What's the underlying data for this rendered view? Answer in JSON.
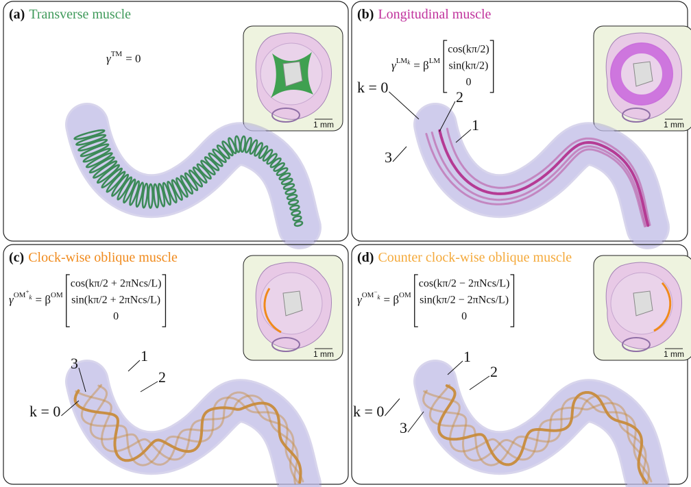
{
  "panels": [
    {
      "label": "(a)",
      "title": "Transverse muscle",
      "equation": {
        "symbol": "γ",
        "superscript": "TM",
        "rhs": "= 0"
      },
      "scale_bar": "1 mm"
    },
    {
      "label": "(b)",
      "title": "Longitudinal muscle",
      "equation": {
        "symbol": "γ",
        "superscript": "LM",
        "superscript_sub": "k",
        "rhs": "= β",
        "rhs_superscript": "LM",
        "matrix": [
          "cos(kπ/2)",
          "sin(kπ/2)",
          "0"
        ]
      },
      "fiber_labels": [
        "k = 0",
        "2",
        "1",
        "3"
      ],
      "scale_bar": "1 mm"
    },
    {
      "label": "(c)",
      "title": "Clock-wise oblique muscle",
      "equation": {
        "symbol": "γ",
        "superscript": "OM",
        "superscript_sup": "+",
        "superscript_sub": "k",
        "rhs": "= β",
        "rhs_superscript": "OM",
        "matrix": [
          "cos(kπ/2 + 2πNcs/L)",
          "sin(kπ/2 + 2πNcs/L)",
          "0"
        ]
      },
      "fiber_labels": [
        "3",
        "1",
        "2",
        "k = 0"
      ],
      "scale_bar": "1 mm"
    },
    {
      "label": "(d)",
      "title": "Counter clock-wise oblique muscle",
      "equation": {
        "symbol": "γ",
        "superscript": "OM",
        "superscript_sup": "−",
        "superscript_sub": "k",
        "rhs": "= β",
        "rhs_superscript": "OM",
        "matrix": [
          "cos(kπ/2 − 2πNcs/L)",
          "sin(kπ/2 − 2πNcs/L)",
          "0"
        ]
      },
      "fiber_labels": [
        "1",
        "2",
        "k = 0",
        "3"
      ],
      "scale_bar": "1 mm"
    }
  ]
}
